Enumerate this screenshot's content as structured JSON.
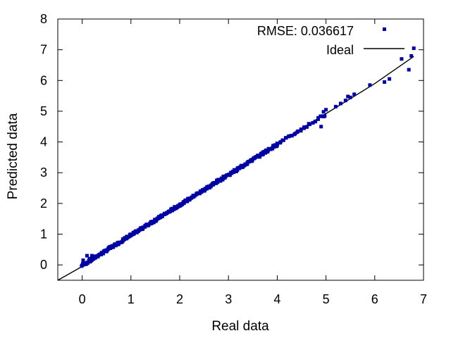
{
  "chart_data": {
    "type": "scatter",
    "title": "",
    "xlabel": "Real data",
    "ylabel": "Predicted data",
    "xlim": [
      -0.5,
      7
    ],
    "ylim": [
      -0.5,
      8
    ],
    "xticks": [
      "0",
      "1",
      "2",
      "3",
      "4",
      "5",
      "6",
      "7"
    ],
    "yticks": [
      "0",
      "1",
      "2",
      "3",
      "4",
      "5",
      "6",
      "7",
      "8"
    ],
    "grid": false,
    "legend_position": "top-right",
    "series": [
      {
        "name": "RMSE: 0.036617",
        "kind": "points",
        "color": "#0000a0",
        "marker": "square",
        "dense_segments": [
          {
            "x_start": 0.0,
            "x_end": 4.0,
            "step": 0.025,
            "y_jitter": 0.04
          },
          {
            "x_start": 4.0,
            "x_end": 5.0,
            "step": 0.06,
            "y_jitter": 0.04
          }
        ],
        "points": [
          {
            "x": 0.02,
            "y": 0.15
          },
          {
            "x": 0.05,
            "y": 0.05
          },
          {
            "x": 0.1,
            "y": 0.3
          },
          {
            "x": 0.15,
            "y": 0.2
          },
          {
            "x": 0.2,
            "y": 0.3
          },
          {
            "x": 4.55,
            "y": 4.48
          },
          {
            "x": 4.9,
            "y": 4.5
          },
          {
            "x": 4.95,
            "y": 4.98
          },
          {
            "x": 5.0,
            "y": 5.05
          },
          {
            "x": 5.2,
            "y": 5.15
          },
          {
            "x": 5.3,
            "y": 5.25
          },
          {
            "x": 5.4,
            "y": 5.35
          },
          {
            "x": 5.45,
            "y": 5.48
          },
          {
            "x": 5.5,
            "y": 5.45
          },
          {
            "x": 5.58,
            "y": 5.55
          },
          {
            "x": 5.9,
            "y": 5.85
          },
          {
            "x": 6.2,
            "y": 5.95
          },
          {
            "x": 6.3,
            "y": 6.05
          },
          {
            "x": 6.55,
            "y": 6.7
          },
          {
            "x": 6.7,
            "y": 6.35
          },
          {
            "x": 6.75,
            "y": 6.8
          },
          {
            "x": 6.8,
            "y": 7.05
          }
        ]
      },
      {
        "name": "Ideal",
        "kind": "line",
        "color": "#000000",
        "x": [
          -0.5,
          0.0,
          1.0,
          2.0,
          3.0,
          4.0,
          5.0,
          6.0,
          6.8
        ],
        "y": [
          -0.5,
          -0.05,
          0.9,
          1.98,
          2.96,
          3.95,
          4.92,
          5.9,
          6.78
        ]
      }
    ]
  }
}
